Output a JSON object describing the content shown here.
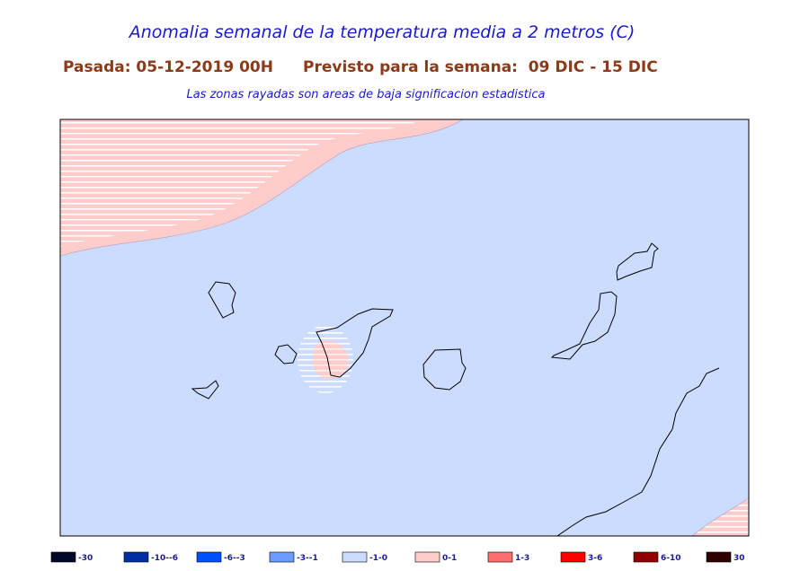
{
  "header": {
    "title": "Anomalia semanal de la temperatura media a 2 metros (C)",
    "run": "Pasada: 05-12-2019 00H",
    "forecast": "Previsto para la semana:  09 DIC - 15 DIC",
    "note": "Las zonas rayadas son areas de baja significacion estadistica"
  },
  "legend": [
    {
      "label": "-30",
      "color": "#000a28"
    },
    {
      "label": "-10--6",
      "color": "#0030a0"
    },
    {
      "label": "-6--3",
      "color": "#0050ff"
    },
    {
      "label": "-3--1",
      "color": "#6e9bff"
    },
    {
      "label": "-1-0",
      "color": "#ccdcff"
    },
    {
      "label": "0-1",
      "color": "#ffcccc"
    },
    {
      "label": "1-3",
      "color": "#ff6e6e"
    },
    {
      "label": "3-6",
      "color": "#ff0000"
    },
    {
      "label": "6-10",
      "color": "#900000"
    },
    {
      "label": "30",
      "color": "#300000"
    }
  ]
}
